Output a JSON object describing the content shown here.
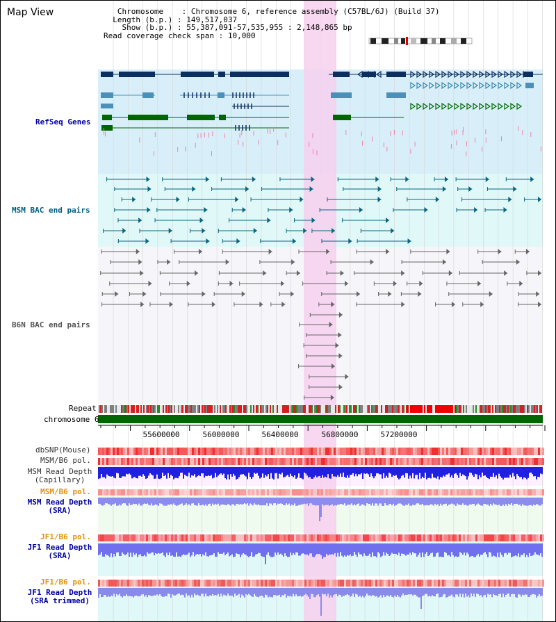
{
  "app": {
    "title": "Map View"
  },
  "info": {
    "rows": [
      {
        "key": "Chromosome",
        "value": "Chromosome 6, reference assembly (C57BL/6J) (Build 37)"
      },
      {
        "key": "Length (b.p.)",
        "value": "149,517,037"
      },
      {
        "key": "Show (b.p.)",
        "value": "55,387,091-57,535,955 : 2,148,865 bp"
      },
      {
        "key": "Read coverage check span",
        "value": "10,000"
      }
    ]
  },
  "tracks": {
    "refseq": "RefSeq Genes",
    "msm_bac": "MSM BAC end pairs",
    "b6n_bac": "B6N BAC end pairs",
    "repeat": "Repeat",
    "chromosome": "chromosome 6",
    "dbsnp": "dbSNP(Mouse)",
    "msm_pol": "MSM/B6 pol.",
    "msm_depth_cap_1": "MSM Read Depth",
    "msm_depth_cap_2": "(Capillary)",
    "msm_pol_sra": "MSM/B6 pol.",
    "msm_depth_sra_1": "MSM Read Depth",
    "msm_depth_sra_2": "(SRA)",
    "jf1_pol": "JF1/B6 pol.",
    "jf1_depth_sra_1": "JF1 Read Depth",
    "jf1_depth_sra_2": "(SRA)",
    "jf1_pol_2": "JF1/B6 pol.",
    "jf1_depth_trim_1": "JF1 Read Depth",
    "jf1_depth_trim_2": "(SRA trimmed)"
  },
  "axis": {
    "ticks": [
      "55600000",
      "56000000",
      "56400000",
      "56800000",
      "57200000"
    ]
  },
  "colors": {
    "refseq_bg": "#d8effa",
    "msm_bac_bg": "#e0f8f8",
    "highlight": "#f7d0ee",
    "gene_dark": "#0d2f5f",
    "gene_mid": "#4a90b8",
    "gene_green": "#006600",
    "bac_teal": "#0a6480",
    "bac_gray": "#666666",
    "chromosome_bar": "#006600"
  }
}
